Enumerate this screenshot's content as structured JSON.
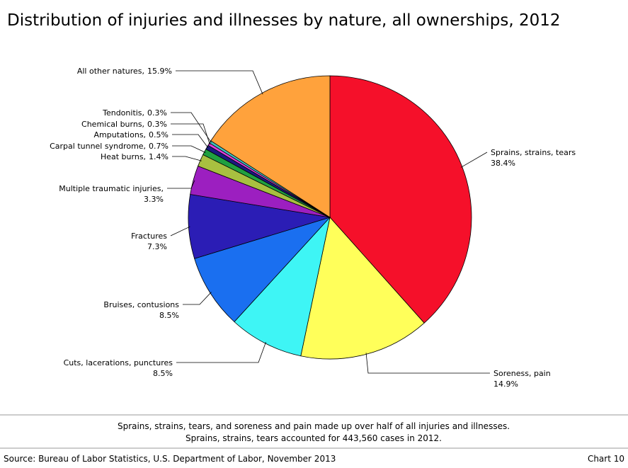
{
  "chart_data": {
    "type": "pie",
    "title": "Distribution of injuries and illnesses by nature, all ownerships, 2012",
    "categories": [
      "Sprains, strains, tears",
      "Soreness, pain",
      "Cuts, lacerations, punctures",
      "Bruises, contusions",
      "Fractures",
      "Multiple traumatic injuries,",
      "Heat burns,",
      "Carpal tunnel syndrome,",
      "Amputations,",
      "Chemical burns,",
      "Tendonitis,",
      "All other natures,"
    ],
    "values": [
      38.4,
      14.9,
      8.5,
      8.5,
      7.3,
      3.3,
      1.4,
      0.7,
      0.5,
      0.3,
      0.3,
      15.9
    ],
    "value_labels": [
      "38.4%",
      "14.9%",
      "8.5%",
      "8.5%",
      "7.3%",
      "3.3%",
      "1.4%",
      "0.7%",
      "0.5%",
      "0.3%",
      "0.3%",
      "15.9%"
    ],
    "colors": [
      "#f5102a",
      "#ffff5a",
      "#3ef5f5",
      "#1a6ff0",
      "#2b1db5",
      "#9c1fc0",
      "#a8c040",
      "#20a040",
      "#1a1a80",
      "#e040e0",
      "#40c0c0",
      "#ffa23c"
    ],
    "notes": [
      "Sprains, strains, tears, and soreness and pain made up over half of all injuries and illnesses.",
      "Sprains, strains, tears accounted for 443,560 cases in 2012."
    ],
    "source": "Source: Bureau of Labor Statistics, U.S. Department of Labor, November 2013",
    "chart_label": "Chart 10"
  }
}
